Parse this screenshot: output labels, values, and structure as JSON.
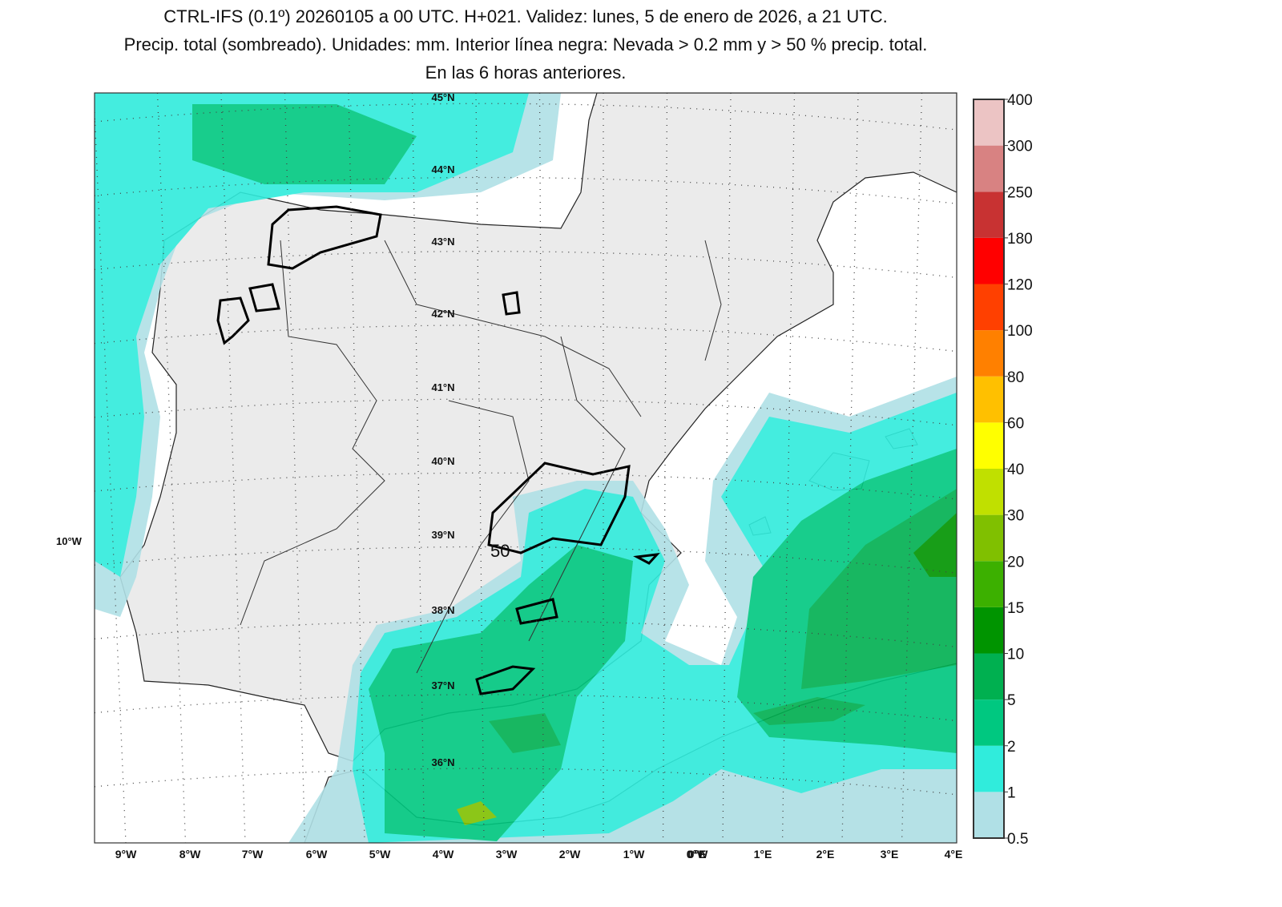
{
  "header": {
    "title_lines": [
      "CTRL-IFS (0.1º) 20260105 a 00 UTC. H+021. Validez: lunes, 5 de enero de 2026, a 21 UTC.",
      "Precip. total (sombreado). Unidades: mm. Interior línea negra: Nevada > 0.2 mm y > 50 % precip. total.",
      "En las 6 horas anteriores."
    ]
  },
  "map": {
    "lat_labels": [
      "45°N",
      "44°N",
      "43°N",
      "42°N",
      "41°N",
      "40°N",
      "39°N",
      "38°N",
      "37°N",
      "36°N"
    ],
    "lon_labels": [
      "9°W",
      "8°W",
      "7°W",
      "6°W",
      "5°W",
      "4°W",
      "3°W",
      "2°W",
      "1°W",
      "0°W",
      "0°E",
      "1°E",
      "2°E",
      "3°E",
      "4°E"
    ],
    "side_label": "10°W",
    "contour_label": "50"
  },
  "colorbar": {
    "levels": [
      0.5,
      1,
      2,
      5,
      10,
      15,
      20,
      30,
      40,
      60,
      80,
      100,
      120,
      180,
      250,
      300,
      400
    ],
    "colors": [
      "#b0e0e6",
      "#30ecdc",
      "#00c880",
      "#00b050",
      "#009400",
      "#3cb000",
      "#80c000",
      "#c0e000",
      "#ffff00",
      "#ffc000",
      "#ff8000",
      "#ff4000",
      "#ff0000",
      "#c83232",
      "#d88282",
      "#ecc4c4"
    ]
  }
}
